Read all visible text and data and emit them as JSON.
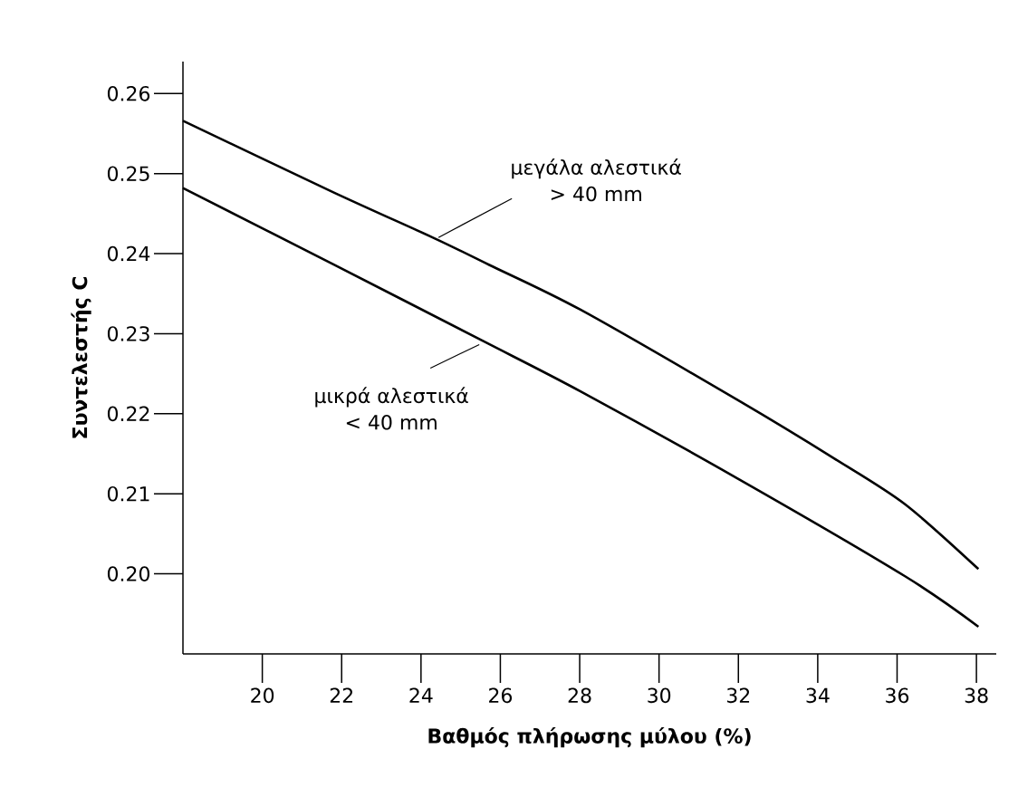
{
  "chart_data": {
    "type": "line",
    "xlabel": "Βαθμός πλήρωσης μύλου (%)",
    "ylabel": "Συντελεστής C",
    "series": [
      {
        "color": "#000000",
        "x": [
          18,
          21.78,
          24.35,
          25.72,
          28.02,
          32.02,
          34.42,
          36.2,
          38.05
        ],
        "values": [
          0.2566,
          0.2477,
          0.2419,
          0.2386,
          0.233,
          0.2216,
          0.2144,
          0.2087,
          0.2006
        ]
      },
      {
        "color": "#000000",
        "x": [
          18,
          21.78,
          25.56,
          28.02,
          32.02,
          36.2,
          38.05
        ],
        "values": [
          0.2482,
          0.2387,
          0.2291,
          0.2228,
          0.2118,
          0.1997,
          0.1934
        ]
      }
    ],
    "annotations": [
      {
        "text": "μεγάλα αλεστικά",
        "x": 24.35,
        "y": 0.2418
      },
      "> 40 mm",
      {
        "text": "μικρά αλεστικά",
        "x": 25.56,
        "y": 0.2291
      },
      "< 40 mm"
    ],
    "xlim": [
      18,
      38.5
    ],
    "ylim": [
      0.19,
      0.264
    ],
    "xticks": [
      20,
      22,
      24,
      26,
      28,
      30,
      32,
      34,
      36,
      38
    ],
    "yticks": [
      {
        "value": 0.2,
        "label": "0.20"
      },
      0.21,
      0.22,
      0.23,
      0.24,
      0.25,
      0.26
    ],
    "line_style": "solid"
  }
}
